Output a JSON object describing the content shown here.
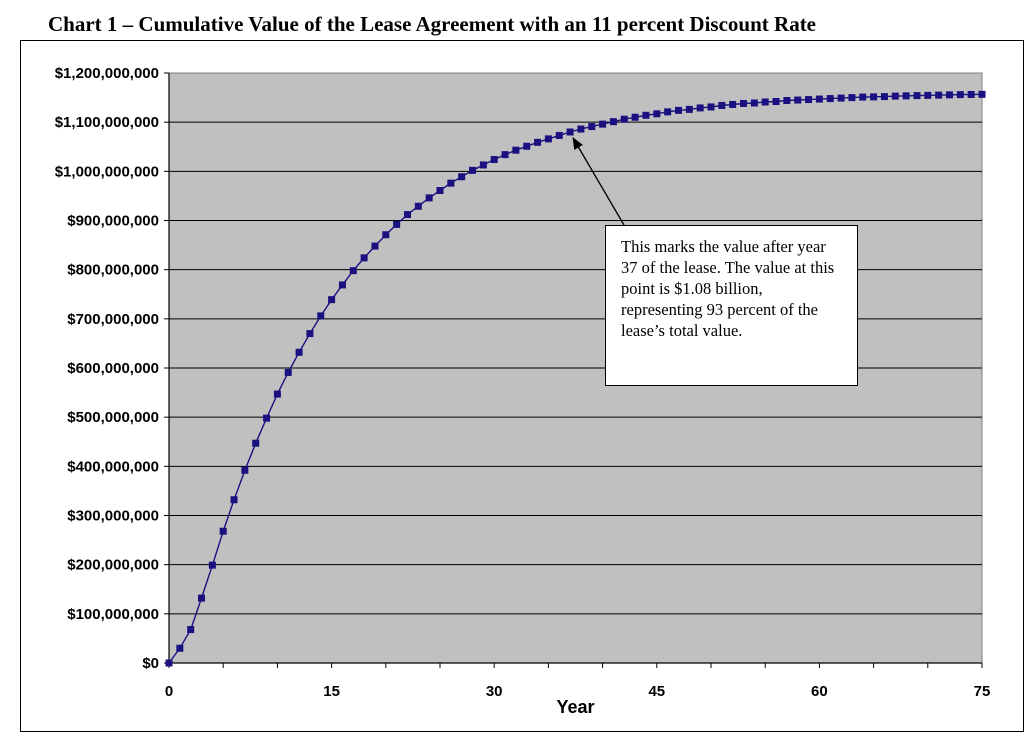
{
  "chart_data": {
    "type": "line",
    "title": "Chart 1 – Cumulative Value of the Lease Agreement with an 11 percent Discount Rate",
    "xlabel": "Year",
    "ylabel": "",
    "xlim": [
      0,
      75
    ],
    "ylim": [
      0,
      1200000000
    ],
    "x_ticks": [
      "0",
      "15",
      "30",
      "45",
      "60",
      "75"
    ],
    "y_ticks": [
      "$0",
      "$100,000,000",
      "$200,000,000",
      "$300,000,000",
      "$400,000,000",
      "$500,000,000",
      "$600,000,000",
      "$700,000,000",
      "$800,000,000",
      "$900,000,000",
      "$1,000,000,000",
      "$1,100,000,000",
      "$1,200,000,000"
    ],
    "grid": "horizontal",
    "marker": "square",
    "colors": {
      "plot_background": "#c0c0c0",
      "line": "#1a1080",
      "marker": "#1a1080"
    },
    "x": [
      0,
      1,
      2,
      3,
      4,
      5,
      6,
      7,
      8,
      9,
      10,
      11,
      12,
      13,
      14,
      15,
      16,
      17,
      18,
      19,
      20,
      21,
      22,
      23,
      24,
      25,
      26,
      27,
      28,
      29,
      30,
      31,
      32,
      33,
      34,
      35,
      36,
      37,
      38,
      39,
      40,
      41,
      42,
      43,
      44,
      45,
      46,
      47,
      48,
      49,
      50,
      51,
      52,
      53,
      54,
      55,
      56,
      57,
      58,
      59,
      60,
      61,
      62,
      63,
      64,
      65,
      66,
      67,
      68,
      69,
      70,
      71,
      72,
      73,
      74,
      75
    ],
    "series": [
      {
        "values": [
          0,
          30000000,
          68000000,
          132000000,
          199000000,
          268000000,
          332000000,
          392000000,
          447000000,
          498000000,
          547000000,
          591000000,
          632000000,
          670000000,
          706000000,
          739000000,
          769000000,
          798000000,
          824000000,
          848000000,
          871000000,
          892000000,
          912000000,
          929000000,
          946000000,
          961000000,
          976000000,
          989000000,
          1002000000,
          1013000000,
          1024000000,
          1034000000,
          1043000000,
          1051000000,
          1059000000,
          1066000000,
          1073000000,
          1080000000,
          1086000000,
          1091000000,
          1096000000,
          1101000000,
          1106000000,
          1110000000,
          1114000000,
          1117000000,
          1121000000,
          1124000000,
          1126000000,
          1129000000,
          1131000000,
          1134000000,
          1136000000,
          1138000000,
          1139000000,
          1141000000,
          1142000000,
          1144000000,
          1145000000,
          1146000000,
          1147000000,
          1148000000,
          1149000000,
          1150000000,
          1151000000,
          1151500000,
          1152000000,
          1153000000,
          1153500000,
          1154000000,
          1154500000,
          1155000000,
          1155500000,
          1156000000,
          1156300000,
          1156600000
        ]
      }
    ],
    "annotations": [
      {
        "text": "This marks the value after year 37 of the lease. The value at this point is $1.08 billion, representing 93 percent of the lease’s total value.",
        "points_to": {
          "x": 37,
          "y": 1080000000
        }
      }
    ]
  }
}
